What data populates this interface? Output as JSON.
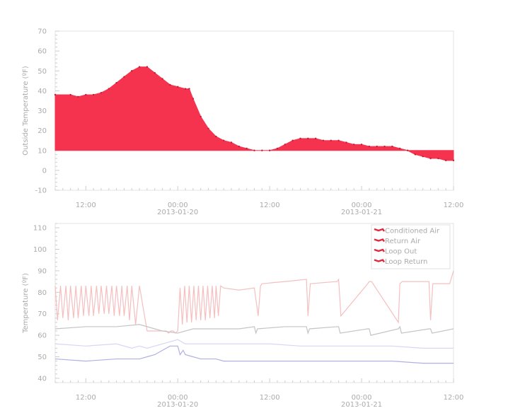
{
  "chart_data": [
    {
      "type": "area",
      "ylabel": "Outside Temperature (ºF)",
      "xlabel": "",
      "ylim": [
        -10,
        70
      ],
      "yticks": [
        -10,
        0,
        10,
        20,
        30,
        40,
        50,
        60,
        70
      ],
      "xlim_hours": [
        -16,
        36
      ],
      "x_ticks": [
        {
          "hour": -12,
          "label": "12:00",
          "sublabel": ""
        },
        {
          "hour": 0,
          "label": "00:00",
          "sublabel": "2013-01-20"
        },
        {
          "hour": 12,
          "label": "12:00",
          "sublabel": ""
        },
        {
          "hour": 24,
          "label": "00:00",
          "sublabel": "2013-01-21"
        },
        {
          "hour": 36,
          "label": "12:00",
          "sublabel": ""
        }
      ],
      "baseline": 10,
      "fill_color": "#f5334f",
      "series": [
        {
          "x": [
            -16,
            -14,
            -13,
            -12,
            -11,
            -10,
            -9,
            -8,
            -7,
            -6,
            -5,
            -4,
            -3,
            -2,
            -1,
            0,
            1,
            1.5,
            2,
            3,
            4,
            5,
            6,
            7,
            8,
            9,
            10,
            11,
            12,
            13,
            14,
            15,
            16,
            17,
            18,
            19,
            20,
            21,
            22,
            23,
            24,
            25,
            26,
            27,
            28,
            29,
            30,
            31,
            32,
            33,
            34,
            35,
            36
          ],
          "y": [
            38,
            38,
            37,
            38,
            38,
            39,
            41,
            44,
            47,
            50,
            52,
            52,
            49,
            46,
            43,
            42,
            41,
            41,
            36,
            27,
            21,
            17,
            15,
            14,
            12,
            11,
            10,
            10,
            10,
            11,
            13,
            15,
            16,
            16,
            16,
            15,
            15,
            15,
            14,
            13,
            13,
            12,
            12,
            12,
            12,
            11,
            10,
            8,
            7,
            6,
            6,
            5,
            5
          ]
        }
      ]
    },
    {
      "type": "line",
      "ylabel": "Temperature (ºF)",
      "xlabel": "",
      "ylim": [
        38,
        112
      ],
      "yticks": [
        40,
        50,
        60,
        70,
        80,
        90,
        100,
        110
      ],
      "xlim_hours": [
        -16,
        36
      ],
      "x_ticks": [
        {
          "hour": -12,
          "label": "12:00",
          "sublabel": ""
        },
        {
          "hour": 0,
          "label": "00:00",
          "sublabel": "2013-01-20"
        },
        {
          "hour": 12,
          "label": "12:00",
          "sublabel": ""
        },
        {
          "hour": 24,
          "label": "00:00",
          "sublabel": "2013-01-21"
        },
        {
          "hour": 36,
          "label": "12:00",
          "sublabel": ""
        }
      ],
      "legend_position": "top-right",
      "series": [
        {
          "name": "Conditioned Air",
          "color": "#f5bfbf",
          "x": [
            -16,
            -15.7,
            -15.3,
            -15,
            -14.6,
            -14.3,
            -14,
            -13.6,
            -13.3,
            -13,
            -12.6,
            -12.3,
            -12,
            -11.6,
            -11.3,
            -11,
            -10.6,
            -10.3,
            -10,
            -9.6,
            -9.3,
            -9,
            -8.6,
            -8.3,
            -8,
            -7.6,
            -7.3,
            -7,
            -6.6,
            -6.3,
            -6,
            -5.5,
            -5,
            -4,
            -3,
            -2,
            -1.5,
            -1.2,
            -0.9,
            -0.6,
            -0.3,
            0,
            0.3,
            0.6,
            0.9,
            1.2,
            1.5,
            1.8,
            2.1,
            2.4,
            2.7,
            3,
            3.3,
            3.6,
            3.9,
            4.2,
            4.5,
            4.8,
            5,
            5.3,
            5.6,
            6,
            8,
            10,
            10.5,
            10.8,
            11,
            14,
            16.8,
            17,
            17.3,
            20.8,
            21,
            21.3,
            24.8,
            25,
            25.3,
            28.8,
            29,
            29.3,
            32.8,
            33,
            33.3,
            35.5,
            36
          ],
          "y": [
            83,
            67,
            83,
            68,
            83,
            67,
            83,
            68,
            83,
            68,
            83,
            69,
            83,
            69,
            83,
            69,
            83,
            70,
            83,
            70,
            83,
            70,
            83,
            69,
            83,
            69,
            83,
            69,
            83,
            67,
            83,
            65,
            83,
            62,
            62,
            62,
            62,
            61,
            62,
            62,
            61,
            62,
            82,
            65,
            83,
            66,
            83,
            66,
            83,
            67,
            83,
            67,
            83,
            67,
            83,
            68,
            83,
            68,
            83,
            69,
            83,
            82,
            81,
            82,
            69,
            83,
            84,
            85,
            86,
            69,
            84,
            85,
            86,
            69,
            84,
            85,
            85,
            66,
            84,
            85,
            85,
            67,
            84,
            84,
            90
          ]
        },
        {
          "name": "Return Air",
          "color": "#c4c4c4",
          "x": [
            -16,
            -12,
            -8,
            -5,
            -3,
            -2,
            0,
            2,
            4,
            6,
            8,
            10,
            10.2,
            10.4,
            14,
            16.8,
            17,
            17.2,
            20.8,
            21,
            21.2,
            24.8,
            25,
            25.2,
            28.8,
            29,
            29.2,
            32.8,
            33,
            33.2,
            36
          ],
          "y": [
            63,
            64,
            64,
            65,
            63,
            62,
            61,
            63,
            63,
            63,
            63,
            64,
            61,
            63,
            64,
            64,
            61,
            63,
            64,
            64,
            61,
            63,
            63,
            60,
            63,
            64,
            61,
            63,
            63,
            61,
            63
          ]
        },
        {
          "name": "Loop Out",
          "color": "#d6d6f5",
          "x": [
            -16,
            -12,
            -8,
            -6,
            -5,
            -4,
            -3,
            -2,
            -1,
            0,
            0.5,
            1,
            2,
            4,
            6,
            8,
            12,
            16,
            20,
            24,
            28,
            32,
            36
          ],
          "y": [
            56,
            55,
            56,
            54,
            55,
            54,
            55,
            56,
            57,
            58,
            57,
            56,
            56,
            56,
            56,
            56,
            56,
            55,
            55,
            55,
            55,
            54,
            54
          ]
        },
        {
          "name": "Loop Return",
          "color": "#b0b0e6",
          "x": [
            -16,
            -12,
            -8,
            -6,
            -5,
            -4,
            -3,
            -2,
            -1,
            0,
            0.3,
            0.7,
            1,
            2,
            3,
            4,
            5,
            6,
            8,
            12,
            16,
            20,
            24,
            28,
            32,
            36
          ],
          "y": [
            49,
            48,
            49,
            49,
            49,
            50,
            51,
            53,
            55,
            55,
            51,
            53,
            51,
            50,
            49,
            49,
            49,
            48,
            48,
            48,
            48,
            48,
            48,
            48,
            47,
            47
          ]
        }
      ]
    }
  ]
}
